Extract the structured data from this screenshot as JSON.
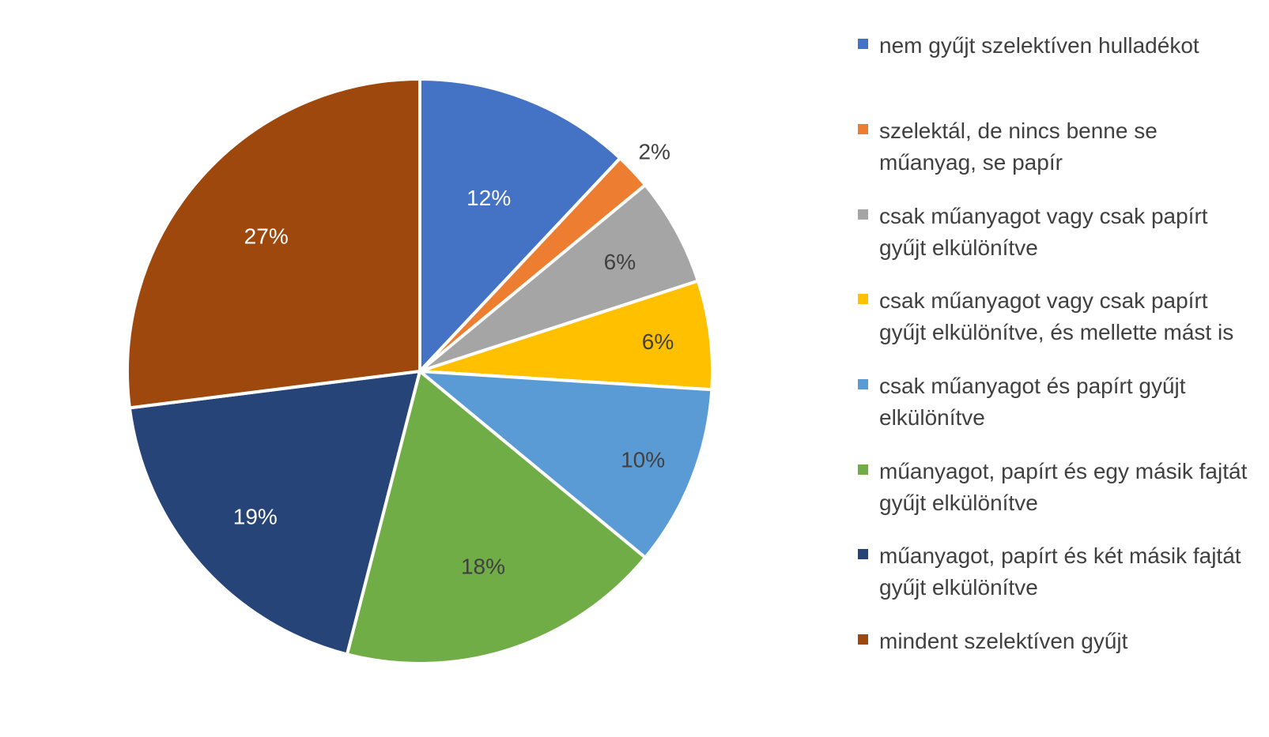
{
  "chart_data": {
    "type": "pie",
    "title": "",
    "legend_position": "right",
    "slices": [
      {
        "label": "nem gyűjt szelektíven hulladékot",
        "value": 12,
        "display": "12%",
        "color": "#4472C4",
        "label_color": "#ffffff"
      },
      {
        "label": "szelektál, de nincs benne se műanyag, se papír",
        "value": 2,
        "display": "2%",
        "color": "#ED7D31",
        "label_color": "#404040"
      },
      {
        "label": "csak műanyagot vagy csak papírt gyűjt elkülönítve",
        "value": 6,
        "display": "6%",
        "color": "#A5A5A5",
        "label_color": "#404040"
      },
      {
        "label": "csak műanyagot vagy csak papírt gyűjt elkülönítve, és mellette mást is",
        "value": 6,
        "display": "6%",
        "color": "#FFC000",
        "label_color": "#404040"
      },
      {
        "label": "csak műanyagot és papírt gyűjt elkülönítve",
        "value": 10,
        "display": "10%",
        "color": "#5B9BD5",
        "label_color": "#404040"
      },
      {
        "label": "műanyagot, papírt és egy másik fajtát gyűjt elkülönítve",
        "value": 18,
        "display": "18%",
        "color": "#70AD47",
        "label_color": "#404040"
      },
      {
        "label": "műanyagot, papírt és két másik fajtát gyűjt elkülönítve",
        "value": 19,
        "display": "19%",
        "color": "#264478",
        "label_color": "#ffffff"
      },
      {
        "label": "mindent szelektíven gyűjt",
        "value": 27,
        "display": "27%",
        "color": "#9E480E",
        "label_color": "#ffffff"
      }
    ]
  }
}
